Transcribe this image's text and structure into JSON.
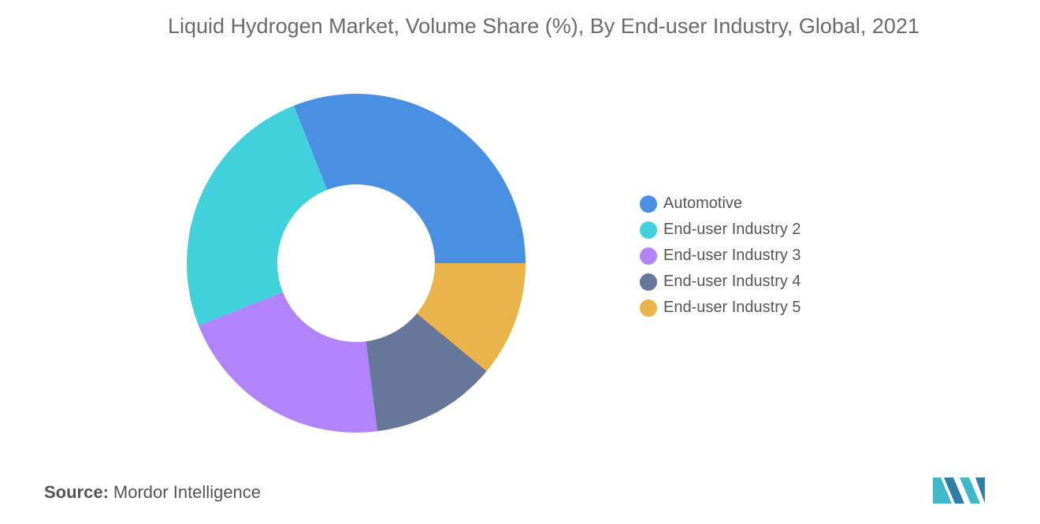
{
  "title": "Liquid Hydrogen Market, Volume Share (%), By End-user Industry, Global, 2021",
  "source": {
    "label": "Source:",
    "text": "Mordor Intelligence"
  },
  "logo_icon": "mordor-intelligence-logo",
  "chart_data": {
    "type": "pie",
    "variant": "donut",
    "title": "Liquid Hydrogen Market, Volume Share (%), By End-user Industry, Global, 2021",
    "legend_position": "right",
    "series": [
      {
        "name": "Automotive",
        "value": 31,
        "color": "#4A90E2"
      },
      {
        "name": "End-user Industry 2",
        "value": 25,
        "color": "#41D1DB"
      },
      {
        "name": "End-user Industry 3",
        "value": 21,
        "color": "#B284FC"
      },
      {
        "name": "End-user Industry 4",
        "value": 12,
        "color": "#66779A"
      },
      {
        "name": "End-user Industry 5",
        "value": 11,
        "color": "#EBB44A"
      }
    ]
  }
}
